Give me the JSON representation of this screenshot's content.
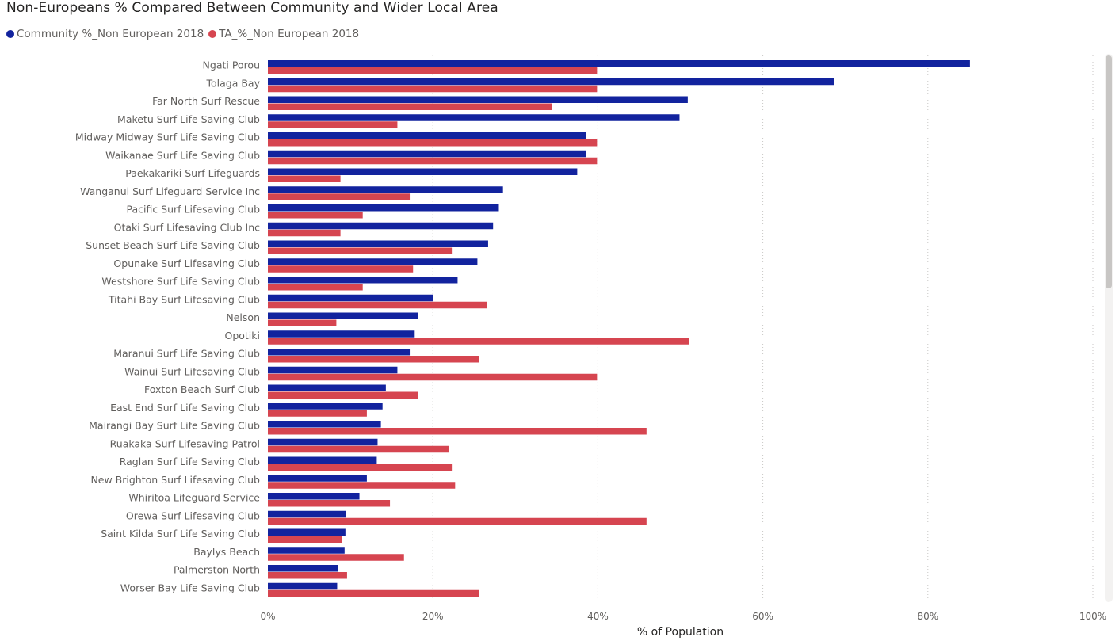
{
  "chart_data": {
    "type": "bar",
    "orientation": "horizontal",
    "title": "Non-Europeans % Compared Between Community and Wider Local Area",
    "xlabel": "% of Population",
    "ylabel": "",
    "xlim": [
      0,
      100
    ],
    "x_ticks": [
      "0%",
      "20%",
      "40%",
      "60%",
      "80%",
      "100%"
    ],
    "grid": "vertical dotted",
    "legend_position": "top-left",
    "categories": [
      "Ngati Porou",
      "Tolaga Bay",
      "Far North Surf Rescue",
      "Maketu Surf Life Saving Club",
      "Midway Midway Surf Life Saving Club",
      "Waikanae Surf Life Saving Club",
      "Paekakariki Surf Lifeguards",
      "Wanganui Surf Lifeguard Service Inc",
      "Pacific Surf Lifesaving Club",
      "Otaki Surf Lifesaving Club Inc",
      "Sunset Beach Surf Life Saving Club",
      "Opunake Surf Lifesaving Club",
      "Westshore Surf Life Saving Club",
      "Titahi Bay Surf Lifesaving Club",
      "Nelson",
      "Opotiki",
      "Maranui Surf Life Saving Club",
      "Wainui Surf Lifesaving Club",
      "Foxton Beach Surf Club",
      "East End Surf Life Saving Club",
      "Mairangi Bay Surf Life Saving Club",
      "Ruakaka Surf Lifesaving Patrol",
      "Raglan Surf Life Saving Club",
      "New Brighton Surf Lifesaving Club",
      "Whiritoa Lifeguard Service",
      "Orewa Surf Lifesaving Club",
      "Saint Kilda Surf Life Saving Club",
      "Baylys Beach",
      "Palmerston North",
      "Worser Bay Life Saving Club"
    ],
    "series": [
      {
        "name": "Community %_Non European 2018",
        "color": "#12239e",
        "values": [
          85.1,
          68.6,
          50.9,
          49.9,
          38.6,
          38.6,
          37.5,
          28.5,
          28.0,
          27.3,
          26.7,
          25.4,
          23.0,
          20.0,
          18.2,
          17.8,
          17.2,
          15.7,
          14.3,
          13.9,
          13.7,
          13.3,
          13.2,
          12.0,
          11.1,
          9.5,
          9.4,
          9.3,
          8.5,
          8.4
        ]
      },
      {
        "name": "TA_%_Non European 2018",
        "color": "#d64550",
        "values": [
          39.9,
          39.9,
          34.4,
          15.7,
          39.9,
          39.9,
          8.8,
          17.2,
          11.5,
          8.8,
          22.3,
          17.6,
          11.5,
          26.6,
          8.3,
          51.1,
          25.6,
          39.9,
          18.2,
          12.0,
          45.9,
          21.9,
          22.3,
          22.7,
          14.8,
          45.9,
          9.0,
          16.5,
          9.6,
          25.6
        ]
      }
    ]
  }
}
